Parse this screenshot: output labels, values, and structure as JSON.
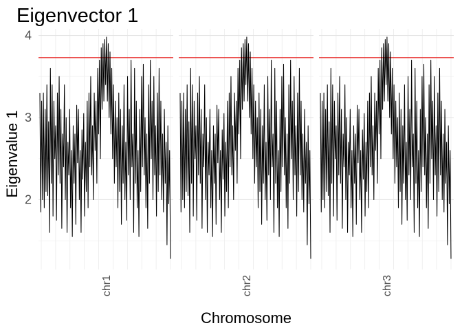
{
  "chart_data": {
    "type": "line",
    "title": "Eigenvector 1",
    "xlabel": "Chromosome",
    "ylabel": "Eigenvalue 1",
    "ylim": [
      1.15,
      4.08
    ],
    "yticks": [
      2,
      3,
      4
    ],
    "grid": true,
    "legend": "none",
    "facets": [
      "chr1",
      "chr2",
      "chr3"
    ],
    "threshold": {
      "value": 3.73,
      "color": "#e8312f"
    },
    "line_color": "#000000",
    "series": [
      {
        "values": [
          3.3,
          1.85,
          3.2,
          2.0,
          3.3,
          1.9,
          3.1,
          2.1,
          3.4,
          2.05,
          2.95,
          1.6,
          3.6,
          2.2,
          3.4,
          1.8,
          3.2,
          2.5,
          2.9,
          1.75,
          3.3,
          2.3,
          3.5,
          2.2,
          3.1,
          1.65,
          2.8,
          2.4,
          3.4,
          2.0,
          3.0,
          1.6,
          2.7,
          2.3,
          3.1,
          1.9,
          2.6,
          1.55,
          2.9,
          2.2,
          2.8,
          1.7,
          3.15,
          2.45,
          3.1,
          2.0,
          2.6,
          1.6,
          2.85,
          2.25,
          3.05,
          1.8,
          2.7,
          2.1,
          3.2,
          1.9,
          3.3,
          2.4,
          3.5,
          2.3,
          2.9,
          2.0,
          3.3,
          2.6,
          3.2,
          2.2,
          3.6,
          2.8,
          3.7,
          2.5,
          3.85,
          3.1,
          3.9,
          3.2,
          3.95,
          3.4,
          3.98,
          3.2,
          3.9,
          3.0,
          3.8,
          2.8,
          3.6,
          2.5,
          3.4,
          2.2,
          3.2,
          2.4,
          3.0,
          1.9,
          3.3,
          2.1,
          3.1,
          1.7,
          2.9,
          2.2,
          3.4,
          2.0,
          2.7,
          1.75,
          3.5,
          2.3,
          3.1,
          2.0,
          3.7,
          2.4,
          2.8,
          1.6,
          3.6,
          2.2,
          3.2,
          1.9,
          2.6,
          1.55,
          3.1,
          2.1,
          3.5,
          2.4,
          3.65,
          2.3,
          3.0,
          1.9,
          2.8,
          1.65,
          3.4,
          2.2,
          3.7,
          2.5,
          3.2,
          2.0,
          3.5,
          2.3,
          2.9,
          1.8,
          3.3,
          2.1,
          3.6,
          2.3,
          3.2,
          2.0,
          2.8,
          1.85,
          3.1,
          2.2,
          2.7,
          1.45,
          2.9,
          1.95,
          2.6,
          1.28
        ]
      }
    ]
  }
}
